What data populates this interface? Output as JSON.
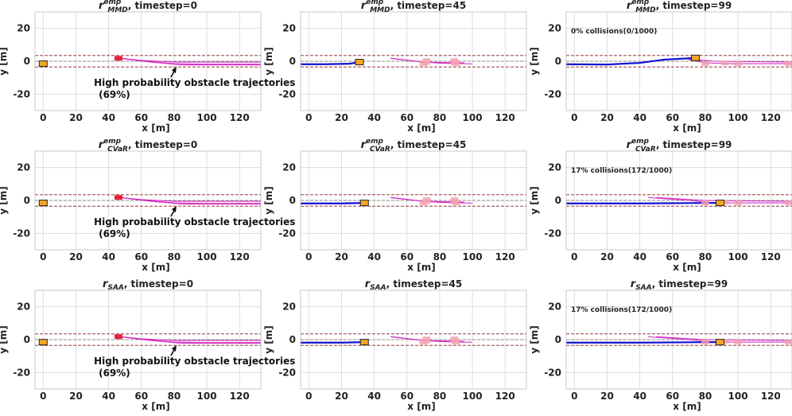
{
  "figure": {
    "axes_common": {
      "xlabel": "x [m]",
      "ylabel": "y [m]",
      "xlim": [
        -5,
        133
      ],
      "ylim": [
        -30,
        30
      ],
      "xticks": [
        0,
        20,
        40,
        60,
        80,
        100,
        120
      ],
      "yticks": [
        20,
        0,
        -20
      ],
      "grid": true,
      "lane_lines_y": [
        3.5,
        0,
        -3.5
      ]
    }
  },
  "chart_data": [
    {
      "type": "line",
      "title_base": "r",
      "title_sup": "emp",
      "title_sub": "MMD",
      "title_rest": ", timestep=0",
      "timestep": 0,
      "ego": {
        "x": 0,
        "y": -1.5
      },
      "ego_path": [],
      "obstacle_marks": [
        {
          "x": 46,
          "y": 1.8
        }
      ],
      "obstacle_paths": [
        [
          [
            47,
            1.8
          ],
          [
            62,
            0
          ],
          [
            80,
            -1.5
          ],
          [
            100,
            -1.8
          ],
          [
            133,
            -1.8
          ]
        ],
        [
          [
            47,
            1.8
          ],
          [
            60,
            0.5
          ],
          [
            80,
            -0.5
          ],
          [
            133,
            -0.5
          ]
        ],
        [
          [
            47,
            1.8
          ],
          [
            66,
            -0.5
          ],
          [
            85,
            -2.2
          ],
          [
            133,
            -2.2
          ]
        ]
      ],
      "annotation": {
        "text": "High probability obstacle trajectories",
        "text2": "(69%)",
        "arrow_target": {
          "x": 80,
          "y": -2
        },
        "text_at": {
          "x": 31,
          "y": -15
        }
      },
      "collisions_text": ""
    },
    {
      "type": "line",
      "title_base": "r",
      "title_sup": "emp",
      "title_sub": "MMD",
      "title_rest": ", timestep=45",
      "timestep": 45,
      "ego": {
        "x": 31,
        "y": -0.5
      },
      "ego_path": [
        [
          -5,
          -1.8
        ],
        [
          10,
          -1.8
        ],
        [
          25,
          -1.5
        ],
        [
          31,
          -0.5
        ]
      ],
      "obstacle_marks": [
        {
          "x": 72,
          "y": -0.8
        },
        {
          "x": 72,
          "y": 0.5
        },
        {
          "x": 89,
          "y": -0.8
        },
        {
          "x": 89,
          "y": 0.5
        },
        {
          "x": 70,
          "y": -1.5
        },
        {
          "x": 90,
          "y": -1.5
        }
      ],
      "obstacle_paths": [
        [
          [
            50,
            1.8
          ],
          [
            65,
            0
          ],
          [
            80,
            -1.2
          ],
          [
            100,
            -1.6
          ]
        ],
        [
          [
            50,
            1.8
          ],
          [
            70,
            -0.5
          ],
          [
            95,
            -1
          ]
        ]
      ],
      "annotation": null,
      "collisions_text": ""
    },
    {
      "type": "line",
      "title_base": "r",
      "title_sup": "emp",
      "title_sub": "MMD",
      "title_rest": ", timestep=99",
      "timestep": 99,
      "ego": {
        "x": 74,
        "y": 2
      },
      "ego_path": [
        [
          -5,
          -1.8
        ],
        [
          20,
          -2
        ],
        [
          40,
          -1
        ],
        [
          55,
          1
        ],
        [
          74,
          2
        ]
      ],
      "obstacle_marks": [
        {
          "x": 80,
          "y": -1.5
        },
        {
          "x": 92,
          "y": -1
        },
        {
          "x": 100,
          "y": -1.5
        },
        {
          "x": 131,
          "y": -1.5
        }
      ],
      "obstacle_paths": [
        [
          [
            70,
            1
          ],
          [
            80,
            -1
          ],
          [
            95,
            -1.5
          ],
          [
            133,
            -1.5
          ]
        ],
        [
          [
            65,
            1.8
          ],
          [
            85,
            0
          ],
          [
            133,
            -0.5
          ]
        ]
      ],
      "annotation": null,
      "collisions_text": "0% collisions(0/1000)"
    },
    {
      "type": "line",
      "title_base": "r",
      "title_sup": "emp",
      "title_sub": "CVaR",
      "title_rest": ", timestep=0",
      "timestep": 0,
      "ego": {
        "x": 0,
        "y": -1.5
      },
      "ego_path": [],
      "obstacle_marks": [
        {
          "x": 46,
          "y": 1.8
        }
      ],
      "obstacle_paths": [
        [
          [
            47,
            1.8
          ],
          [
            62,
            0
          ],
          [
            80,
            -1.5
          ],
          [
            100,
            -1.8
          ],
          [
            133,
            -1.8
          ]
        ],
        [
          [
            47,
            1.8
          ],
          [
            60,
            0.5
          ],
          [
            80,
            -0.5
          ],
          [
            133,
            -0.5
          ]
        ],
        [
          [
            47,
            1.8
          ],
          [
            66,
            -0.5
          ],
          [
            85,
            -2.2
          ],
          [
            133,
            -2.2
          ]
        ]
      ],
      "annotation": {
        "text": "High probability obstacle trajectories",
        "text2": "(69%)",
        "arrow_target": {
          "x": 80,
          "y": -2
        },
        "text_at": {
          "x": 31,
          "y": -15
        }
      },
      "collisions_text": ""
    },
    {
      "type": "line",
      "title_base": "r",
      "title_sup": "emp",
      "title_sub": "CVaR",
      "title_rest": ", timestep=45",
      "timestep": 45,
      "ego": {
        "x": 34,
        "y": -1.5
      },
      "ego_path": [
        [
          -5,
          -1.8
        ],
        [
          20,
          -1.8
        ],
        [
          34,
          -1.5
        ]
      ],
      "obstacle_marks": [
        {
          "x": 72,
          "y": -0.8
        },
        {
          "x": 72,
          "y": 0.5
        },
        {
          "x": 89,
          "y": -0.8
        },
        {
          "x": 89,
          "y": 0.5
        },
        {
          "x": 70,
          "y": -1.5
        },
        {
          "x": 90,
          "y": -1.5
        }
      ],
      "obstacle_paths": [
        [
          [
            50,
            1.8
          ],
          [
            65,
            0
          ],
          [
            80,
            -1.2
          ],
          [
            100,
            -1.6
          ]
        ],
        [
          [
            50,
            1.8
          ],
          [
            70,
            -0.5
          ],
          [
            95,
            -1
          ]
        ]
      ],
      "annotation": null,
      "collisions_text": ""
    },
    {
      "type": "line",
      "title_base": "r",
      "title_sup": "emp",
      "title_sub": "CVaR",
      "title_rest": ", timestep=99",
      "timestep": 99,
      "ego": {
        "x": 89,
        "y": -1.5
      },
      "ego_path": [
        [
          -5,
          -1.8
        ],
        [
          40,
          -1.8
        ],
        [
          70,
          -1.6
        ],
        [
          89,
          -1.5
        ]
      ],
      "obstacle_marks": [
        {
          "x": 80,
          "y": -1.5
        },
        {
          "x": 92,
          "y": -1
        },
        {
          "x": 100,
          "y": -1.5
        },
        {
          "x": 131,
          "y": -1.5
        }
      ],
      "obstacle_paths": [
        [
          [
            45,
            1.8
          ],
          [
            70,
            0
          ],
          [
            85,
            -1.5
          ],
          [
            133,
            -1.5
          ]
        ],
        [
          [
            50,
            1.8
          ],
          [
            80,
            0
          ],
          [
            133,
            -0.5
          ]
        ]
      ],
      "annotation": null,
      "collisions_text": "17% collisions(172/1000)"
    },
    {
      "type": "line",
      "title_base": "r",
      "title_sup": "",
      "title_sub": "SAA",
      "title_rest": ", timestep=0",
      "timestep": 0,
      "ego": {
        "x": 0,
        "y": -1.5
      },
      "ego_path": [],
      "obstacle_marks": [
        {
          "x": 46,
          "y": 1.8
        }
      ],
      "obstacle_paths": [
        [
          [
            47,
            1.8
          ],
          [
            62,
            0
          ],
          [
            80,
            -1.5
          ],
          [
            100,
            -1.8
          ],
          [
            133,
            -1.8
          ]
        ],
        [
          [
            47,
            1.8
          ],
          [
            60,
            0.5
          ],
          [
            80,
            -0.5
          ],
          [
            133,
            -0.5
          ]
        ],
        [
          [
            47,
            1.8
          ],
          [
            66,
            -0.5
          ],
          [
            85,
            -2.2
          ],
          [
            133,
            -2.2
          ]
        ]
      ],
      "annotation": {
        "text": "High probability obstacle trajectories",
        "text2": "(69%)",
        "arrow_target": {
          "x": 80,
          "y": -2
        },
        "text_at": {
          "x": 31,
          "y": -15
        }
      },
      "collisions_text": ""
    },
    {
      "type": "line",
      "title_base": "r",
      "title_sup": "",
      "title_sub": "SAA",
      "title_rest": ", timestep=45",
      "timestep": 45,
      "ego": {
        "x": 34,
        "y": -1.5
      },
      "ego_path": [
        [
          -5,
          -1.8
        ],
        [
          20,
          -1.8
        ],
        [
          34,
          -1.5
        ]
      ],
      "obstacle_marks": [
        {
          "x": 72,
          "y": -0.8
        },
        {
          "x": 72,
          "y": 0.5
        },
        {
          "x": 89,
          "y": -0.8
        },
        {
          "x": 89,
          "y": 0.5
        },
        {
          "x": 70,
          "y": -1.5
        },
        {
          "x": 90,
          "y": -1.5
        }
      ],
      "obstacle_paths": [
        [
          [
            50,
            1.8
          ],
          [
            65,
            0
          ],
          [
            80,
            -1.2
          ],
          [
            100,
            -1.6
          ]
        ],
        [
          [
            50,
            1.8
          ],
          [
            70,
            -0.5
          ],
          [
            95,
            -1
          ]
        ]
      ],
      "annotation": null,
      "collisions_text": ""
    },
    {
      "type": "line",
      "title_base": "r",
      "title_sup": "",
      "title_sub": "SAA",
      "title_rest": ", timestep=99",
      "timestep": 99,
      "ego": {
        "x": 89,
        "y": -1.5
      },
      "ego_path": [
        [
          -5,
          -1.8
        ],
        [
          40,
          -1.8
        ],
        [
          70,
          -1.6
        ],
        [
          89,
          -1.5
        ]
      ],
      "obstacle_marks": [
        {
          "x": 80,
          "y": -1.5
        },
        {
          "x": 92,
          "y": -1
        },
        {
          "x": 100,
          "y": -1.5
        },
        {
          "x": 131,
          "y": -1.5
        }
      ],
      "obstacle_paths": [
        [
          [
            45,
            1.8
          ],
          [
            70,
            0
          ],
          [
            85,
            -1.5
          ],
          [
            133,
            -1.5
          ]
        ],
        [
          [
            50,
            1.8
          ],
          [
            80,
            0
          ],
          [
            133,
            -0.5
          ]
        ]
      ],
      "annotation": null,
      "collisions_text": "17% collisions(172/1000)"
    }
  ],
  "colors": {
    "grid": "#d6d6d6",
    "lane": "#8b1a1a",
    "ego": "#f5a623",
    "ego_path": "#1010d0",
    "obstacle": "#e8203c",
    "obstacle_light": "#f4a0b0",
    "obstacle_path": "#d020c0",
    "center_line": "#707070"
  }
}
